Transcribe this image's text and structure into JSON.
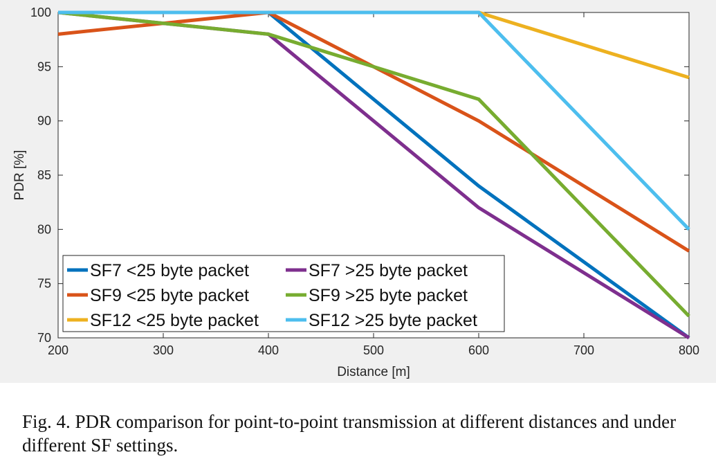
{
  "chart_data": {
    "type": "line",
    "title": "",
    "xlabel": "Distance [m]",
    "ylabel": "PDR [%]",
    "xlim": [
      200,
      800
    ],
    "ylim": [
      70,
      100
    ],
    "x": [
      200,
      400,
      600,
      800
    ],
    "xticks": [
      "200",
      "300",
      "400",
      "500",
      "600",
      "700",
      "800"
    ],
    "yticks": [
      "70",
      "75",
      "80",
      "85",
      "90",
      "95",
      "100"
    ],
    "grid": false,
    "legend_position": "bottom-left",
    "legend_columns": 2,
    "series": [
      {
        "name": "SF7 <25 byte packet",
        "color": "#0072BD",
        "values": [
          100,
          100,
          84,
          70
        ]
      },
      {
        "name": "SF7 >25 byte packet",
        "color": "#7E2F8E",
        "values": [
          100,
          98,
          82,
          70
        ]
      },
      {
        "name": "SF9 <25 byte packet",
        "color": "#D95319",
        "values": [
          98,
          100,
          90,
          78
        ]
      },
      {
        "name": "SF9 >25 byte packet",
        "color": "#77AC30",
        "values": [
          100,
          98,
          92,
          72
        ]
      },
      {
        "name": "SF12 <25 byte packet",
        "color": "#EDB120",
        "values": [
          100,
          100,
          100,
          94
        ]
      },
      {
        "name": "SF12 >25 byte packet",
        "color": "#4DBEEE",
        "values": [
          100,
          100,
          100,
          80
        ]
      }
    ]
  },
  "caption": "Fig. 4.  PDR comparison for point-to-point transmission at different distances and under different SF settings."
}
